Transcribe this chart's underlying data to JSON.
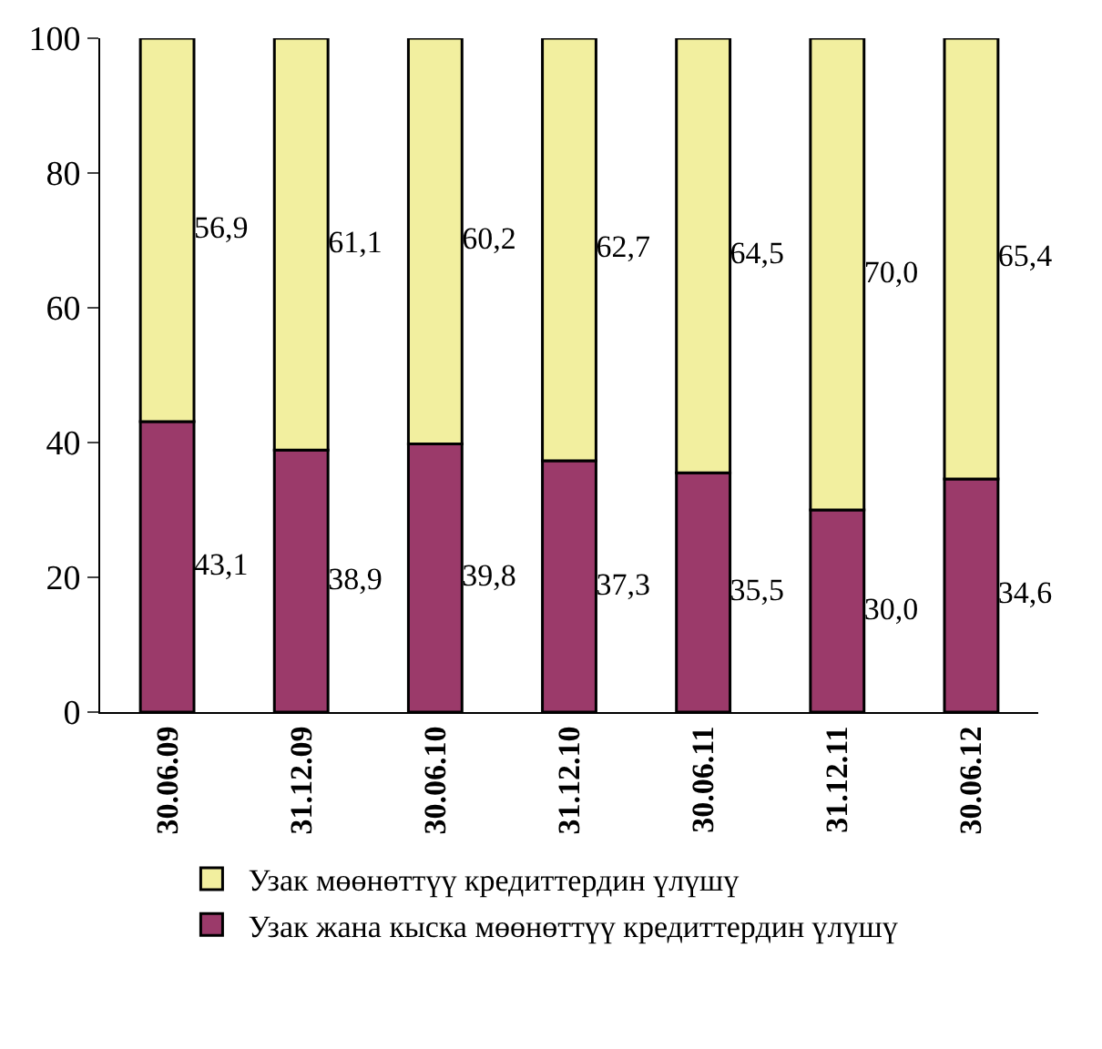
{
  "chart_data": {
    "type": "bar",
    "stacked": true,
    "categories": [
      "30.06.09",
      "31.12.09",
      "30.06.10",
      "31.12.10",
      "30.06.11",
      "31.12.11",
      "30.06.12"
    ],
    "series": [
      {
        "name": "Узак жана кыска мөөнөттүү кредиттердин үлүшү",
        "color": "#9b3a6a",
        "values": [
          43.1,
          38.9,
          39.8,
          37.3,
          35.5,
          30.0,
          34.6
        ],
        "value_labels": [
          "43,1",
          "38,9",
          "39,8",
          "37,3",
          "35,5",
          "30,0",
          "34,6"
        ]
      },
      {
        "name": "Узак мөөнөттүү кредиттердин үлүшү",
        "color": "#f2ef9f",
        "values": [
          56.9,
          61.1,
          60.2,
          62.7,
          64.5,
          70.0,
          65.4
        ],
        "value_labels": [
          "56,9",
          "61,1",
          "60,2",
          "62,7",
          "64,5",
          "70,0",
          "65,4"
        ]
      }
    ],
    "ylim": [
      0,
      100
    ],
    "yticks": [
      0,
      20,
      40,
      60,
      80,
      100
    ],
    "legend": "bottom"
  }
}
